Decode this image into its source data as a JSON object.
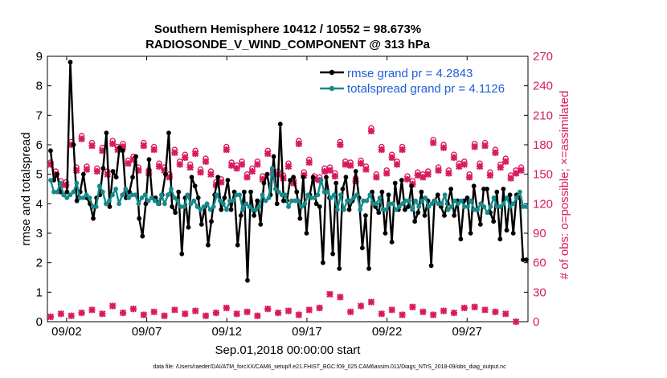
{
  "colors": {
    "rmse": "#000000",
    "spread": "#178a8a",
    "obs": "#d81b60",
    "legend_text": "#1f5fd6",
    "axis": "#000000"
  },
  "chart_data": {
    "type": "line",
    "title_line1": "Southern Hemisphere 10412 / 10552 = 98.673%",
    "title_line2": "RADIOSONDE_V_WIND_COMPONENT @ 313 hPa",
    "ylabel_left": "rmse and totalspread",
    "ylabel_right": "# of obs: o=possible; ×=assimilated",
    "xlabel": "Sep.01,2018 00:00:00 start",
    "footer": "data file: /Users/raeder/DAI/ATM_forcXX/CAM6_setup/f.e21.FHIST_BGC.f09_025.CAM6assim.011/Diags_NTrS_2018-09/obs_diag_output.nc",
    "xlim": [
      0.8,
      30.8
    ],
    "ylim_left": [
      0,
      9
    ],
    "ylim_right": [
      0,
      270
    ],
    "xticks": [
      2,
      7,
      12,
      17,
      22,
      27
    ],
    "xtick_labels": [
      "09/02",
      "09/07",
      "09/12",
      "09/17",
      "09/22",
      "09/27"
    ],
    "yticks_left": [
      "0",
      "1",
      "2",
      "3",
      "4",
      "5",
      "6",
      "7",
      "8",
      "9"
    ],
    "yticks_right": [
      "0",
      "30",
      "60",
      "90",
      "120",
      "150",
      "180",
      "210",
      "240",
      "270"
    ],
    "legend": {
      "rmse": "rmse grand pr = 4.2843",
      "spread": "totalspread grand pr = 4.1126"
    },
    "series": [
      {
        "name": "rmse",
        "axis": "left",
        "values": [
          5.8,
          4.8,
          5.0,
          4.4,
          4.3,
          4.4,
          8.8,
          6.0,
          4.1,
          4.4,
          5.0,
          4.2,
          4.0,
          3.5,
          4.2,
          4.3,
          5.2,
          6.4,
          3.9,
          5.1,
          4.9,
          5.9,
          5.8,
          4.2,
          4.4,
          4.9,
          5.6,
          3.5,
          2.9,
          4.0,
          5.5,
          4.2,
          4.2,
          4.0,
          4.3,
          5.0,
          6.4,
          3.9,
          3.7,
          4.4,
          2.3,
          4.2,
          3.2,
          4.9,
          4.6,
          4.2,
          3.3,
          3.9,
          2.6,
          3.4,
          4.3,
          4.9,
          3.8,
          4.2,
          4.8,
          3.8,
          4.4,
          2.6,
          3.6,
          4.4,
          1.4,
          4.4,
          3.6,
          4.1,
          3.3,
          4.7,
          5.0,
          4.3,
          5.6,
          4.0,
          6.7,
          4.1,
          4.1,
          4.8,
          4.9,
          4.4,
          3.5,
          4.9,
          3.0,
          4.3,
          4.9,
          4.0,
          3.9,
          2.0,
          4.9,
          4.2,
          2.3,
          4.7,
          1.8,
          4.5,
          4.9,
          3.8,
          4.1,
          5.1,
          4.2,
          2.5,
          3.6,
          1.8,
          4.4,
          3.9,
          3.7,
          4.4,
          3.0,
          4.3,
          2.7,
          4.7,
          3.8,
          4.8,
          3.8,
          3.9,
          4.6,
          3.4,
          3.7,
          4.4,
          3.6,
          4.1,
          1.9,
          4.1,
          4.3,
          3.9,
          3.6,
          4.0,
          4.5,
          3.6,
          4.1,
          2.8,
          4.1,
          4.2,
          3.0,
          4.6,
          3.8,
          3.3,
          4.5,
          4.5,
          3.7,
          3.4,
          4.4,
          2.8,
          4.5,
          3.1,
          4.3,
          3.0,
          4.3,
          4.2,
          2.1,
          2.1
        ]
      },
      {
        "name": "totalspread",
        "axis": "left",
        "values": [
          4.8,
          4.4,
          4.4,
          4.7,
          4.3,
          4.2,
          4.3,
          4.4,
          4.7,
          4.2,
          4.2,
          4.3,
          4.2,
          3.9,
          3.9,
          4.6,
          4.4,
          4.0,
          4.1,
          4.3,
          4.5,
          4.0,
          4.3,
          4.5,
          4.2,
          4.3,
          4.3,
          4.0,
          4.2,
          4.3,
          4.1,
          4.2,
          4.1,
          4.0,
          4.3,
          4.0,
          4.3,
          4.5,
          4.2,
          4.1,
          3.9,
          3.9,
          4.3,
          4.0,
          4.1,
          3.9,
          3.8,
          3.9,
          4.0,
          3.8,
          3.9,
          4.3,
          4.1,
          4.0,
          3.8,
          4.1,
          4.1,
          4.3,
          4.3,
          3.8,
          4.0,
          3.9,
          3.8,
          3.8,
          3.9,
          4.3,
          4.1,
          4.2,
          5.2,
          4.5,
          4.4,
          4.3,
          4.3,
          3.9,
          4.1,
          4.1,
          4.1,
          3.9,
          4.0,
          4.3,
          4.2,
          4.2,
          4.3,
          4.8,
          4.4,
          4.4,
          4.2,
          4.3,
          3.8,
          4.3,
          3.8,
          4.1,
          4.1,
          4.2,
          4.3,
          3.8,
          4.1,
          4.1,
          4.3,
          4.0,
          4.0,
          4.2,
          3.8,
          3.8,
          4.0,
          4.0,
          3.8,
          3.9,
          4.0,
          4.1,
          4.1,
          3.8,
          4.1,
          3.9,
          4.1,
          4.2,
          3.9,
          4.0,
          4.1,
          4.0,
          4.0,
          4.3,
          3.8,
          3.9,
          4.1,
          4.0,
          4.1,
          3.9,
          3.9,
          4.1,
          3.8,
          3.8,
          4.0,
          3.9,
          3.7,
          3.9,
          4.2,
          3.9,
          3.9,
          4.0,
          4.2,
          3.9,
          4.0,
          4.2,
          4.4,
          3.9,
          3.9
        ]
      }
    ],
    "obs_possible_day": [
      162,
      143,
      183,
      189,
      182,
      177,
      184,
      181,
      168,
      182,
      178,
      157,
      175,
      170,
      174,
      166,
      142,
      178,
      159,
      150,
      163,
      174,
      153,
      161,
      184,
      165,
      147,
      157,
      183,
      162,
      164,
      197,
      178,
      170,
      178,
      143,
      150,
      185,
      180,
      170,
      163,
      181,
      182,
      175,
      166,
      154
    ],
    "obs_possible_night": [
      153,
      142,
      157,
      158,
      156,
      153,
      178,
      164,
      157,
      154,
      161,
      150,
      163,
      160,
      155,
      153,
      145,
      162,
      163,
      156,
      148,
      154,
      149,
      144,
      152,
      148,
      156,
      151,
      163,
      146,
      158,
      150,
      154,
      163,
      148,
      152,
      153,
      157,
      154,
      161,
      150,
      161,
      152,
      160,
      149,
      157
    ],
    "obs_assimilated_day": [
      160,
      140,
      180,
      186,
      179,
      174,
      181,
      178,
      165,
      179,
      175,
      154,
      172,
      167,
      171,
      163,
      139,
      175,
      156,
      147,
      160,
      171,
      150,
      158,
      181,
      162,
      144,
      154,
      180,
      159,
      161,
      194,
      175,
      167,
      175,
      140,
      147,
      182,
      177,
      167,
      160,
      178,
      179,
      172,
      163,
      151
    ],
    "obs_assimilated_night": [
      150,
      139,
      154,
      155,
      153,
      150,
      175,
      161,
      154,
      151,
      158,
      147,
      160,
      157,
      152,
      150,
      142,
      159,
      160,
      153,
      145,
      151,
      146,
      141,
      149,
      145,
      153,
      148,
      160,
      143,
      155,
      147,
      151,
      160,
      145,
      149,
      150,
      154,
      151,
      158,
      147,
      158,
      149,
      157,
      146,
      154
    ],
    "obs_low": [
      5,
      8,
      6,
      9,
      12,
      8,
      16,
      9,
      13,
      7,
      10,
      6,
      12,
      8,
      11,
      6,
      9,
      14,
      8,
      10,
      6,
      13,
      9,
      11,
      7,
      12,
      14,
      28,
      25,
      10,
      16,
      20,
      8,
      12,
      7,
      15,
      10,
      7,
      11,
      9,
      14,
      15,
      12,
      10,
      8,
      0
    ]
  }
}
